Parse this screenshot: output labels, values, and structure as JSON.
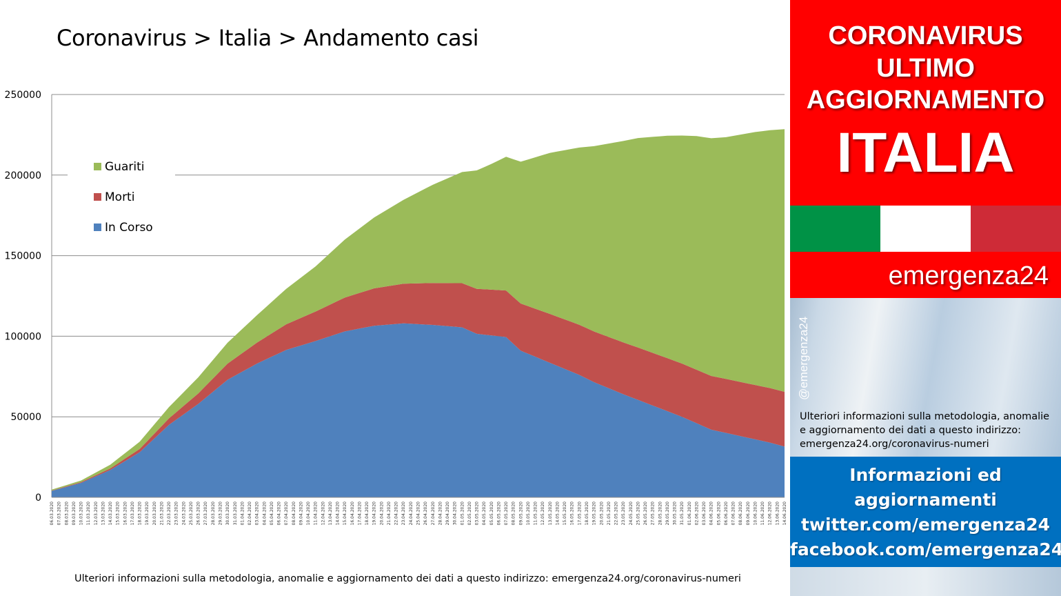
{
  "title": "Coronavirus > Italia > Andamento casi",
  "footnote": "Ulteriori informazioni sulla metodologia, anomalie e aggiornamento dei dati a questo indirizzo: emergenza24.org/coronavirus-numeri",
  "sidebar": {
    "headline_1": "CORONAVIRUS",
    "headline_2": "ULTIMO",
    "headline_3": "AGGIORNAMENTO",
    "headline_4": "ITALIA",
    "brand": "emergenza24",
    "handle": "@emergenza24",
    "note_1": "Ulteriori informazioni sulla metodologia, anomalie",
    "note_2": "e aggiornamento dei dati a questo indirizzo:",
    "note_3": "emergenza24.org/coronavirus-numeri",
    "info_1": "Informazioni ed",
    "info_2": "aggiornamenti",
    "info_3": "twitter.com/emergenza24",
    "info_4": "facebook.com/emergenza24",
    "colors": {
      "red": "#ff0000",
      "green": "#009246",
      "white": "#ffffff",
      "flag_red": "#ce2b37",
      "blue": "#0070c0"
    }
  },
  "chart_data": {
    "type": "area",
    "stacked": true,
    "title": "Coronavirus > Italia > Andamento casi",
    "ylim": [
      0,
      250000
    ],
    "yticks": [
      0,
      50000,
      100000,
      150000,
      200000,
      250000
    ],
    "grid": true,
    "legend_position": "top-left",
    "start_date": "06.03.2020",
    "end_date": "14.06.2020",
    "x_label_format": "dd.mm.yyyy",
    "series": [
      {
        "name": "In Corso",
        "color": "#4f81bd",
        "anchors": [
          [
            0,
            4000
          ],
          [
            4,
            9000
          ],
          [
            8,
            17000
          ],
          [
            12,
            28000
          ],
          [
            16,
            45000
          ],
          [
            20,
            58000
          ],
          [
            24,
            73000
          ],
          [
            28,
            83000
          ],
          [
            32,
            91500
          ],
          [
            36,
            97000
          ],
          [
            40,
            103000
          ],
          [
            44,
            106500
          ],
          [
            48,
            108000
          ],
          [
            52,
            107000
          ],
          [
            56,
            105500
          ],
          [
            58,
            101500
          ],
          [
            62,
            99500
          ],
          [
            64,
            91000
          ],
          [
            68,
            83500
          ],
          [
            72,
            76000
          ],
          [
            74,
            71500
          ],
          [
            78,
            64000
          ],
          [
            82,
            57000
          ],
          [
            86,
            50000
          ],
          [
            90,
            42000
          ],
          [
            94,
            38000
          ],
          [
            98,
            34000
          ],
          [
            102,
            29000
          ],
          [
            104,
            26000
          ]
        ]
      },
      {
        "name": "Morti",
        "color": "#c0504d",
        "anchors": [
          [
            0,
            200
          ],
          [
            4,
            450
          ],
          [
            8,
            1000
          ],
          [
            12,
            2000
          ],
          [
            16,
            4000
          ],
          [
            20,
            6500
          ],
          [
            24,
            10000
          ],
          [
            28,
            13000
          ],
          [
            32,
            15900
          ],
          [
            36,
            18300
          ],
          [
            40,
            21000
          ],
          [
            44,
            23200
          ],
          [
            48,
            24600
          ],
          [
            52,
            26000
          ],
          [
            56,
            27400
          ],
          [
            60,
            28400
          ],
          [
            64,
            29300
          ],
          [
            68,
            30300
          ],
          [
            72,
            31100
          ],
          [
            76,
            31800
          ],
          [
            80,
            32500
          ],
          [
            84,
            32900
          ],
          [
            88,
            33200
          ],
          [
            92,
            33500
          ],
          [
            96,
            33700
          ],
          [
            100,
            34000
          ],
          [
            104,
            34300
          ]
        ]
      },
      {
        "name": "Guariti",
        "color": "#9bbb59",
        "anchors": [
          [
            0,
            600
          ],
          [
            4,
            1000
          ],
          [
            8,
            2300
          ],
          [
            12,
            4500
          ],
          [
            16,
            7000
          ],
          [
            20,
            10000
          ],
          [
            24,
            13000
          ],
          [
            28,
            17000
          ],
          [
            32,
            22000
          ],
          [
            36,
            28000
          ],
          [
            40,
            36000
          ],
          [
            44,
            44000
          ],
          [
            48,
            52000
          ],
          [
            52,
            61000
          ],
          [
            56,
            69000
          ],
          [
            60,
            78000
          ],
          [
            64,
            88000
          ],
          [
            68,
            100000
          ],
          [
            72,
            110000
          ],
          [
            76,
            120000
          ],
          [
            80,
            130000
          ],
          [
            84,
            138000
          ],
          [
            88,
            145000
          ],
          [
            92,
            150000
          ],
          [
            96,
            157000
          ],
          [
            100,
            163000
          ],
          [
            104,
            172000
          ]
        ]
      }
    ]
  }
}
